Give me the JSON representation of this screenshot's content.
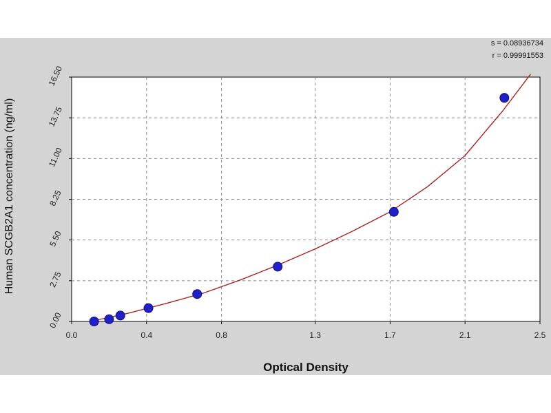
{
  "chart_data": {
    "type": "scatter",
    "title": "",
    "xlabel": "Optical Density",
    "ylabel": "Human SCGB2A1 concentration (ng/ml)",
    "xlim": [
      0.0,
      2.5
    ],
    "ylim": [
      0.0,
      16.5
    ],
    "x_ticks": [
      0.0,
      0.4,
      0.8,
      1.3,
      1.7,
      2.1,
      2.5
    ],
    "x_tick_labels": [
      "0.0",
      "0.4",
      "0.8",
      "1.3",
      "1.7",
      "2.1",
      "2.5"
    ],
    "y_ticks": [
      0.0,
      2.75,
      5.5,
      8.25,
      11.0,
      13.75,
      16.5
    ],
    "y_tick_labels": [
      "0.00",
      "2.75",
      "5.50",
      "8.25",
      "11.00",
      "13.75",
      "16.50"
    ],
    "grid": true,
    "points": {
      "x": [
        0.12,
        0.2,
        0.26,
        0.41,
        0.67,
        1.1,
        1.72,
        2.31
      ],
      "y": [
        0.0,
        0.15,
        0.4,
        0.9,
        1.85,
        3.7,
        7.4,
        15.1
      ]
    },
    "fit_curve": {
      "x": [
        0.1,
        0.3,
        0.5,
        0.7,
        0.9,
        1.1,
        1.3,
        1.5,
        1.7,
        1.9,
        2.1,
        2.3,
        2.45
      ],
      "y": [
        0.0,
        0.55,
        1.2,
        1.9,
        2.8,
        3.8,
        4.9,
        6.1,
        7.4,
        9.1,
        11.2,
        14.2,
        16.9
      ]
    },
    "statistics": {
      "s": "s = 0.08936734",
      "r": "r = 0.99991553"
    },
    "colors": {
      "point_color": "#2020c8",
      "curve_color": "#aa2222",
      "plot_background": "#ffffff",
      "frame_background": "#d4d4d4",
      "grid_color": "#888888"
    }
  }
}
